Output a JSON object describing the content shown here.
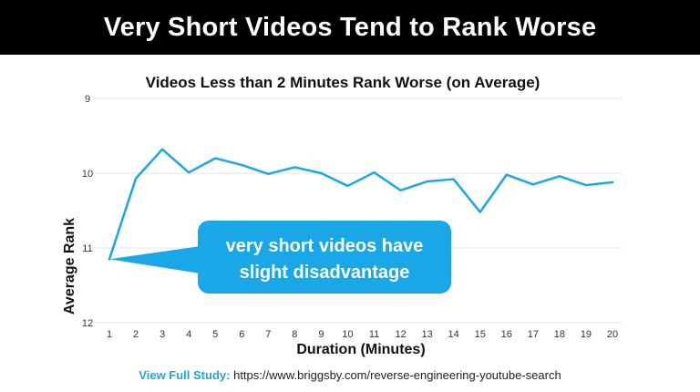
{
  "banner": {
    "title": "Very Short Videos Tend to Rank Worse"
  },
  "chart_data": {
    "type": "line",
    "title": "Videos Less than 2 Minutes Rank Worse (on Average)",
    "xlabel": "Duration (Minutes)",
    "ylabel": "Average Rank",
    "x": [
      1,
      2,
      3,
      4,
      5,
      6,
      7,
      8,
      9,
      10,
      11,
      12,
      13,
      14,
      15,
      16,
      17,
      18,
      19,
      20
    ],
    "series": [
      {
        "values": [
          11.15,
          10.07,
          9.68,
          9.99,
          9.8,
          9.89,
          10.01,
          9.92,
          10.0,
          10.17,
          9.99,
          10.23,
          10.11,
          10.08,
          10.52,
          10.02,
          10.15,
          10.04,
          10.16,
          10.12
        ]
      }
    ],
    "ylim": [
      12,
      9
    ],
    "y_inverted": true,
    "yticks": [
      9,
      10,
      11,
      12
    ],
    "grid": true,
    "legend": "none",
    "line_color": "#1aa7e8",
    "annotation": {
      "lines": [
        "very short videos have",
        "slight disadvantage"
      ],
      "points_to_x": 1,
      "background": "#1aa7e8"
    }
  },
  "footer": {
    "label": "View Full Study:",
    "url": "https://www.briggsby.com/reverse-engineering-youtube-search"
  }
}
